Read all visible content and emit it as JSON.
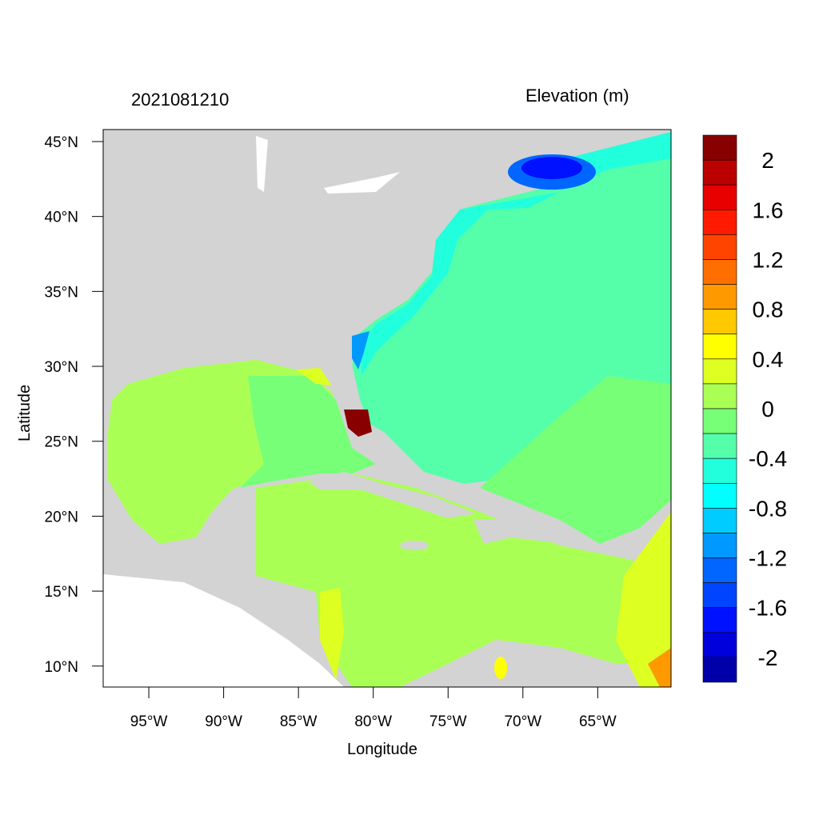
{
  "title": "2021081210",
  "colorbar": {
    "title": "Elevation (m)",
    "labels": [
      "2",
      "1.6",
      "1.2",
      "0.8",
      "0.4",
      "0",
      "-0.4",
      "-0.8",
      "-1.2",
      "-1.6",
      "-2"
    ],
    "levels": [
      2.0,
      1.8,
      1.6,
      1.4,
      1.2,
      1.0,
      0.8,
      0.6,
      0.4,
      0.2,
      0,
      -0.2,
      -0.4,
      -0.6,
      -0.8,
      -1.0,
      -1.2,
      -1.4,
      -1.6,
      -1.8,
      -2.0
    ],
    "colors": [
      "#880000",
      "#BB0000",
      "#E60000",
      "#FF1A00",
      "#FF4400",
      "#FF6F00",
      "#FF9900",
      "#FFC800",
      "#FFFF00",
      "#DDFF22",
      "#AAFF55",
      "#77FF77",
      "#55FFAA",
      "#22FFDD",
      "#00FFFF",
      "#00CCFF",
      "#0099FF",
      "#0066FF",
      "#0044FF",
      "#0011FF",
      "#0000DD",
      "#0000AA"
    ]
  },
  "axes": {
    "xlabel": "Longitude",
    "ylabel": "Latitude",
    "xticks": [
      "95°W",
      "90°W",
      "85°W",
      "80°W",
      "75°W",
      "70°W",
      "65°W"
    ],
    "xtick_values": [
      -95,
      -90,
      -85,
      -80,
      -75,
      -70,
      -65
    ],
    "yticks": [
      "45°N",
      "40°N",
      "35°N",
      "30°N",
      "25°N",
      "20°N",
      "15°N",
      "10°N"
    ],
    "ytick_values": [
      45,
      40,
      35,
      30,
      25,
      20,
      15,
      10
    ],
    "lon_range": [
      -98.05,
      -60.1
    ],
    "lat_range": [
      8.6,
      45.8
    ]
  },
  "land_color": "#D3D3D3"
}
